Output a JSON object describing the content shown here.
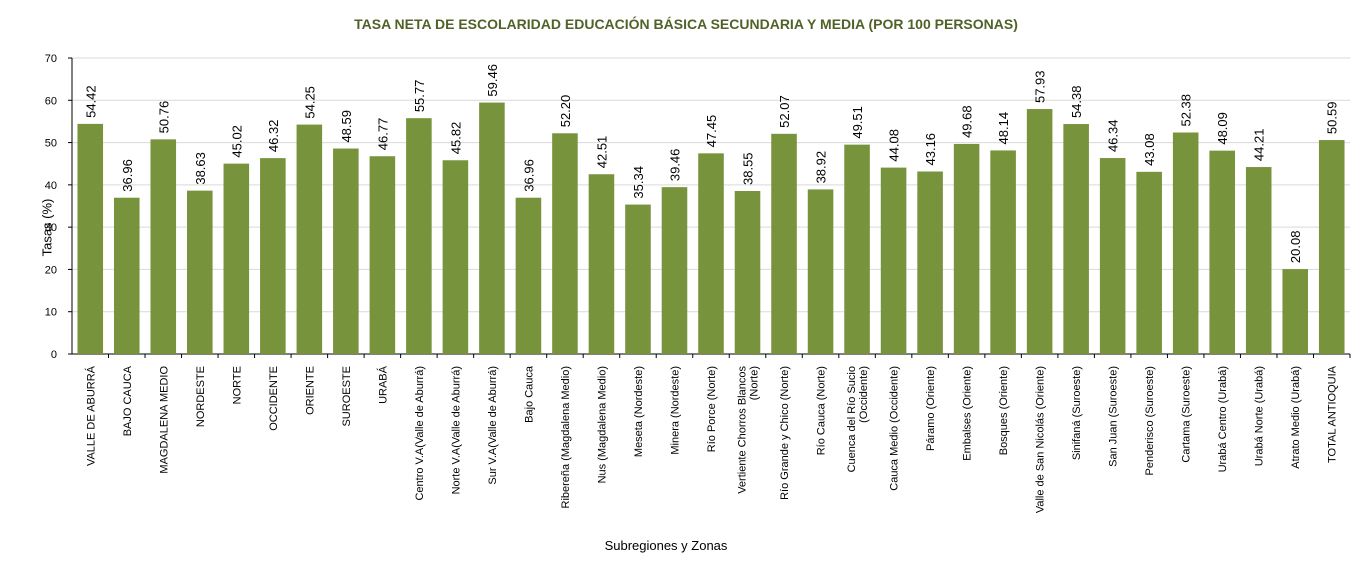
{
  "chart_data": {
    "type": "bar",
    "title": "TASA NETA DE ESCOLARIDAD EDUCACIÓN BÁSICA SECUNDARIA Y MEDIA (POR 100 PERSONAS)",
    "xlabel": "Subregiones y Zonas",
    "ylabel": "Tasas (%)",
    "ylim": [
      0,
      70
    ],
    "yticks": [
      0,
      10,
      20,
      30,
      40,
      50,
      60,
      70
    ],
    "grid": true,
    "bar_color": "#77933c",
    "title_color": "#4f6228",
    "categories": [
      [
        "VALLE DE ABURRÁ"
      ],
      [
        "BAJO CAUCA"
      ],
      [
        "MAGDALENA MEDIO"
      ],
      [
        "NORDESTE"
      ],
      [
        "NORTE"
      ],
      [
        "OCCIDENTE"
      ],
      [
        "ORIENTE"
      ],
      [
        "SUROESTE"
      ],
      [
        "URABÁ"
      ],
      [
        "Centro V.A(Valle de Aburrá)"
      ],
      [
        "Norte V.A(Valle de Aburrá)"
      ],
      [
        "Sur V.A(Valle de Aburrá)"
      ],
      [
        "Bajo Cauca"
      ],
      [
        "Ribereña (Magdalena Medio)"
      ],
      [
        "Nus (Magdalena Medio)"
      ],
      [
        "Meseta (Nordeste)"
      ],
      [
        "Minera (Nordeste)"
      ],
      [
        "Río Porce (Norte)"
      ],
      [
        "Vertiente Chorros Blancos",
        "(Norte)"
      ],
      [
        "Río Grande y Chico (Norte)"
      ],
      [
        "Río Cauca (Norte)"
      ],
      [
        "Cuenca del Río Sucio",
        "(Occidente)"
      ],
      [
        "Cauca Medio (Occidente)"
      ],
      [
        "Páramo (Oriente)"
      ],
      [
        "Embalses (Oriente)"
      ],
      [
        "Bosques (Oriente)"
      ],
      [
        "Valle de San Nicolás (Oriente)"
      ],
      [
        "Sinifaná (Suroeste)"
      ],
      [
        "San Juan (Suroeste)"
      ],
      [
        "Penderisco (Suroeste)"
      ],
      [
        "Cartama (Suroeste)"
      ],
      [
        "Urabá Centro (Urabá)"
      ],
      [
        "Urabá Norte (Urabá)"
      ],
      [
        "Atrato Medio (Urabá)"
      ],
      [
        "TOTAL ANTIOQUIA"
      ]
    ],
    "values": [
      54.42,
      36.96,
      50.76,
      38.63,
      45.02,
      46.32,
      54.25,
      48.59,
      46.77,
      55.77,
      45.82,
      59.46,
      36.96,
      52.2,
      42.51,
      35.34,
      39.46,
      47.45,
      38.55,
      52.07,
      38.92,
      49.51,
      44.08,
      43.16,
      49.68,
      48.14,
      57.93,
      54.38,
      46.34,
      43.08,
      52.38,
      48.09,
      44.21,
      20.08,
      50.59
    ],
    "value_labels": [
      "54.42",
      "36.96",
      "50.76",
      "38.63",
      "45.02",
      "46.32",
      "54.25",
      "48.59",
      "46.77",
      "55.77",
      "45.82",
      "59.46",
      "36.96",
      "52.20",
      "42.51",
      "35.34",
      "39.46",
      "47.45",
      "38.55",
      "52.07",
      "38.92",
      "49.51",
      "44.08",
      "43.16",
      "49.68",
      "48.14",
      "57.93",
      "54.38",
      "46.34",
      "43.08",
      "52.38",
      "48.09",
      "44.21",
      "20.08",
      "50.59"
    ]
  }
}
